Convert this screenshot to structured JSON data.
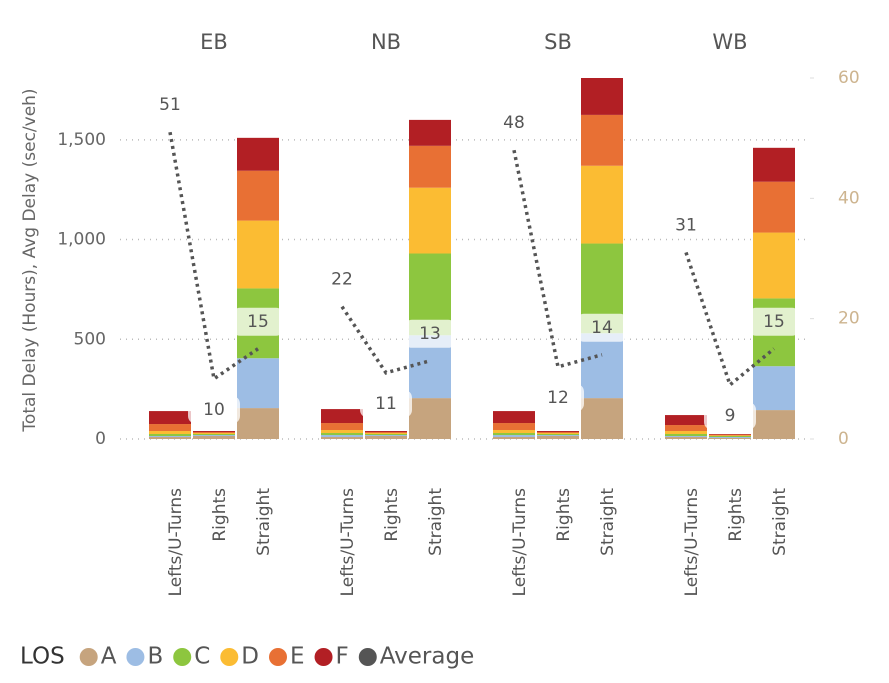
{
  "chart_data": {
    "type": "bar",
    "stacked": true,
    "y_label": "Total Delay (Hours), Avg Delay (sec/veh)",
    "categories": [
      "Lefts/U-Turns",
      "Rights",
      "Straight"
    ],
    "panels": [
      "EB",
      "NB",
      "SB",
      "WB"
    ],
    "legend_title": "LOS",
    "ylim": [
      0,
      1810
    ],
    "yticks": [
      0,
      500,
      {
        "value": 1000,
        "label": "1,000"
      },
      {
        "value": 1500,
        "label": "1,500"
      }
    ],
    "y2lim": [
      0,
      60
    ],
    "y2ticks": [
      0,
      20,
      40,
      60
    ],
    "grid": true,
    "series": [
      {
        "name": "A",
        "color": "#c6a47e",
        "values": [
          [
            10,
            15,
            155
          ],
          [
            10,
            15,
            205
          ],
          [
            10,
            15,
            205
          ],
          [
            10,
            5,
            145
          ]
        ]
      },
      {
        "name": "B",
        "color": "#9dbde4",
        "values": [
          [
            5,
            5,
            250
          ],
          [
            10,
            5,
            315
          ],
          [
            10,
            5,
            325
          ],
          [
            5,
            5,
            220
          ]
        ]
      },
      {
        "name": "C",
        "color": "#8dc63f",
        "values": [
          [
            10,
            5,
            350
          ],
          [
            10,
            5,
            410
          ],
          [
            10,
            5,
            450
          ],
          [
            10,
            5,
            340
          ]
        ]
      },
      {
        "name": "D",
        "color": "#fbbc33",
        "values": [
          [
            15,
            5,
            340
          ],
          [
            15,
            5,
            330
          ],
          [
            15,
            5,
            390
          ],
          [
            15,
            3,
            330
          ]
        ]
      },
      {
        "name": "E",
        "color": "#e87034",
        "values": [
          [
            35,
            5,
            250
          ],
          [
            35,
            5,
            210
          ],
          [
            35,
            5,
            255
          ],
          [
            30,
            4,
            255
          ]
        ]
      },
      {
        "name": "F",
        "color": "#b21f24",
        "values": [
          [
            65,
            5,
            165
          ],
          [
            70,
            5,
            130
          ],
          [
            60,
            5,
            185
          ],
          [
            50,
            3,
            170
          ]
        ]
      }
    ],
    "average": {
      "name": "Average",
      "color": "#555555",
      "axis": "y2",
      "values": [
        [
          51,
          10,
          15
        ],
        [
          22,
          11,
          13
        ],
        [
          48,
          12,
          14
        ],
        [
          31,
          9,
          15
        ]
      ]
    }
  }
}
